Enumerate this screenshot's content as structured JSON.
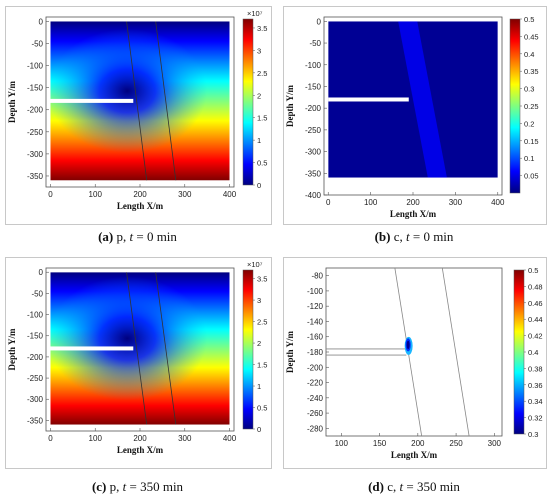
{
  "panels": [
    {
      "id": "a",
      "caption": {
        "letter": "(a)",
        "text": " p, ",
        "t": "t",
        "rest": " = 0 min"
      },
      "chart_data": {
        "type": "heatmap",
        "field": "pressure",
        "xlabel": "Length X/m",
        "ylabel": "Depth Y/m",
        "xlim": [
          -10,
          410
        ],
        "ylim": [
          -375,
          10
        ],
        "xticks": [
          0,
          100,
          200,
          300,
          400
        ],
        "yticks": [
          0,
          -50,
          -100,
          -150,
          -200,
          -250,
          -300,
          -350
        ],
        "domain": {
          "x": [
            0,
            400
          ],
          "y": [
            -360,
            0
          ]
        },
        "colorbar": {
          "min": 0,
          "max": 3.7,
          "ticks": [
            0,
            0.5,
            1,
            1.5,
            2,
            2.5,
            3,
            3.5
          ],
          "labels": [
            "0",
            "0.5",
            "1",
            "1.5",
            "2",
            "2.5",
            "3",
            "3.5"
          ],
          "exponent": "×10⁷",
          "colormap": "jet"
        },
        "fracture": {
          "x": [
            0,
            185
          ],
          "y": -180
        },
        "fault_lines": [
          [
            [
              170,
              0
            ],
            [
              215,
              -360
            ]
          ],
          [
            [
              235,
              0
            ],
            [
              280,
              -360
            ]
          ]
        ]
      }
    },
    {
      "id": "b",
      "caption": {
        "letter": "(b)",
        "text": " c, ",
        "t": "t",
        "rest": " = 0 min"
      },
      "chart_data": {
        "type": "heatmap",
        "field": "concentration",
        "xlabel": "Length X/m",
        "ylabel": "Depth Y/m",
        "xlim": [
          -10,
          410
        ],
        "ylim": [
          -400,
          10
        ],
        "xticks": [
          0,
          100,
          200,
          300,
          400
        ],
        "yticks": [
          0,
          -50,
          -100,
          -150,
          -200,
          -250,
          -300,
          -350,
          -400
        ],
        "domain": {
          "x": [
            0,
            400
          ],
          "y": [
            -360,
            0
          ]
        },
        "colorbar": {
          "min": 0,
          "max": 0.5,
          "ticks": [
            0.05,
            0.1,
            0.15,
            0.2,
            0.25,
            0.3,
            0.35,
            0.4,
            0.45,
            0.5
          ],
          "labels": [
            "0.05",
            "0.1",
            "0.15",
            "0.2",
            "0.25",
            "0.3",
            "0.35",
            "0.4",
            "0.45",
            "0.5"
          ],
          "colormap": "jet"
        },
        "fracture": {
          "x": [
            0,
            190
          ],
          "y": -180
        },
        "fault_band": [
          [
            165,
            0
          ],
          [
            210,
            0
          ],
          [
            280,
            -360
          ],
          [
            235,
            -360
          ]
        ]
      }
    },
    {
      "id": "c",
      "caption": {
        "letter": "(c)",
        "text": " p, ",
        "t": "t",
        "rest": " = 350 min"
      },
      "chart_data": {
        "type": "heatmap",
        "field": "pressure",
        "xlabel": "Length X/m",
        "ylabel": "Depth Y/m",
        "xlim": [
          -10,
          410
        ],
        "ylim": [
          -375,
          10
        ],
        "xticks": [
          0,
          100,
          200,
          300,
          400
        ],
        "yticks": [
          0,
          -50,
          -100,
          -150,
          -200,
          -250,
          -300,
          -350
        ],
        "domain": {
          "x": [
            0,
            400
          ],
          "y": [
            -360,
            0
          ]
        },
        "colorbar": {
          "min": 0,
          "max": 3.7,
          "ticks": [
            0,
            0.5,
            1,
            1.5,
            2,
            2.5,
            3,
            3.5
          ],
          "labels": [
            "0",
            "0.5",
            "1",
            "1.5",
            "2",
            "2.5",
            "3",
            "3.5"
          ],
          "exponent": "×10⁷",
          "colormap": "jet"
        },
        "fracture": {
          "x": [
            0,
            185
          ],
          "y": -180
        },
        "fault_lines": [
          [
            [
              170,
              0
            ],
            [
              215,
              -360
            ]
          ],
          [
            [
              235,
              0
            ],
            [
              280,
              -360
            ]
          ]
        ]
      }
    },
    {
      "id": "d",
      "caption": {
        "letter": "(d)",
        "text": " c, ",
        "t": "t",
        "rest": " = 350 min"
      },
      "chart_data": {
        "type": "heatmap",
        "field": "concentration",
        "xlabel": "Length X/m",
        "ylabel": "Depth Y/m",
        "xlim": [
          80,
          310
        ],
        "ylim": [
          -290,
          -70
        ],
        "xticks": [
          100,
          150,
          200,
          250,
          300
        ],
        "yticks": [
          -80,
          -100,
          -120,
          -140,
          -160,
          -180,
          -200,
          -220,
          -240,
          -260,
          -280
        ],
        "colorbar": {
          "min": 0.3,
          "max": 0.5,
          "ticks": [
            0.3,
            0.32,
            0.34,
            0.36,
            0.38,
            0.4,
            0.42,
            0.44,
            0.46,
            0.48,
            0.5
          ],
          "labels": [
            "0.3",
            "0.32",
            "0.34",
            "0.36",
            "0.38",
            "0.4",
            "0.42",
            "0.44",
            "0.46",
            "0.48",
            "0.5"
          ],
          "colormap": "jet"
        },
        "fracture": {
          "x": [
            80,
            185
          ],
          "y": [
            -176,
            -184
          ]
        },
        "fault_lines": [
          [
            [
              170,
              -70
            ],
            [
              205,
              -290
            ]
          ],
          [
            [
              232,
              -70
            ],
            [
              267,
              -290
            ]
          ]
        ],
        "plume": {
          "x": 188,
          "y": -172
        }
      }
    }
  ]
}
